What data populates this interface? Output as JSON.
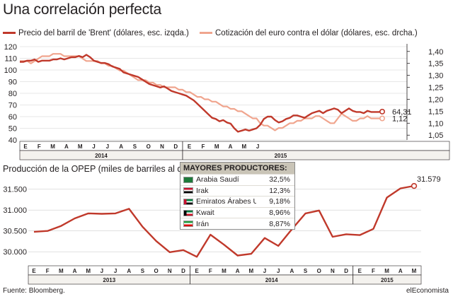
{
  "title": "Una correlación perfecta",
  "legend": {
    "brent": "Precio del barril de 'Brent' (dólares, esc. izqda.)",
    "euro": "Cotización del euro contra el dólar (dólares, esc. drcha.)"
  },
  "colors": {
    "brent": "#c0392b",
    "euro": "#f0a58e",
    "box_header": "#c9c4b7"
  },
  "chart2_title": "Producción de la OPEP (miles de barriles al día)",
  "producers": {
    "header": "MAYORES PRODUCTORES:",
    "rows": [
      {
        "name": "Arabia Saudí",
        "value": "32,5%",
        "flag": "saudi-flag-icon"
      },
      {
        "name": "Irak",
        "value": "12,3%",
        "flag": "iraq-flag-icon"
      },
      {
        "name": "Emiratos Árabes U.",
        "value": "9,18%",
        "flag": "uae-flag-icon"
      },
      {
        "name": "Kwait",
        "value": "8,96%",
        "flag": "kuwait-flag-icon"
      },
      {
        "name": "Irán",
        "value": "8,87%",
        "flag": "iran-flag-icon"
      }
    ]
  },
  "footer": {
    "source": "Fuente: Bloomberg.",
    "brand": "elEconomista"
  },
  "chart_data": [
    {
      "type": "line",
      "x_tick_labels": [
        "E",
        "F",
        "M",
        "A",
        "M",
        "J",
        "J",
        "A",
        "S",
        "O",
        "N",
        "D",
        "E",
        "F",
        "M",
        "A",
        "M",
        "J"
      ],
      "year_labels": [
        "2014",
        "2015"
      ],
      "left_axis": {
        "ticks": [
          "40",
          "50",
          "60",
          "70",
          "80",
          "90",
          "100",
          "110",
          "120"
        ],
        "ylim": [
          40,
          120
        ]
      },
      "right_axis": {
        "ticks": [
          "1,05",
          "1,10",
          "1,15",
          "1,20",
          "1,25",
          "1,30",
          "1,35",
          "1,40"
        ],
        "ylim": [
          1.03,
          1.42
        ]
      },
      "series": [
        {
          "name": "Precio del barril de 'Brent' (dólares, esc. izqda.)",
          "axis": "left",
          "end_label": "64,31",
          "values": [
            107,
            107,
            108,
            108,
            109,
            107,
            108,
            108,
            108,
            109,
            109,
            110,
            109,
            110,
            111,
            111,
            112,
            111,
            113,
            111,
            108,
            107,
            106,
            106,
            105,
            103,
            102,
            101,
            98,
            97,
            96,
            95,
            94,
            92,
            90,
            88,
            87,
            86,
            85,
            86,
            84,
            82,
            81,
            80,
            79,
            78,
            76,
            74,
            71,
            68,
            65,
            62,
            59,
            58,
            56,
            57,
            55,
            54,
            50,
            47,
            48,
            49,
            48,
            49,
            50,
            53,
            58,
            60,
            60,
            57,
            55,
            56,
            58,
            59,
            61,
            61,
            60,
            59,
            61,
            63,
            64,
            65,
            63,
            65,
            66,
            67,
            66,
            63,
            65,
            67,
            65,
            64,
            64,
            63,
            65,
            64,
            64,
            64,
            64.31
          ]
        },
        {
          "name": "Cotización del euro contra el dólar (dólares, esc. drcha.)",
          "axis": "right",
          "end_label": "1,12",
          "values": [
            1.36,
            1.36,
            1.36,
            1.35,
            1.36,
            1.37,
            1.38,
            1.38,
            1.38,
            1.39,
            1.39,
            1.39,
            1.38,
            1.38,
            1.38,
            1.38,
            1.38,
            1.37,
            1.36,
            1.36,
            1.36,
            1.36,
            1.35,
            1.35,
            1.34,
            1.34,
            1.33,
            1.32,
            1.32,
            1.31,
            1.3,
            1.29,
            1.28,
            1.28,
            1.28,
            1.27,
            1.27,
            1.26,
            1.26,
            1.25,
            1.25,
            1.25,
            1.25,
            1.24,
            1.24,
            1.23,
            1.23,
            1.22,
            1.21,
            1.21,
            1.2,
            1.2,
            1.19,
            1.19,
            1.18,
            1.17,
            1.17,
            1.16,
            1.16,
            1.15,
            1.15,
            1.14,
            1.13,
            1.12,
            1.12,
            1.1,
            1.09,
            1.09,
            1.08,
            1.07,
            1.08,
            1.08,
            1.09,
            1.1,
            1.1,
            1.11,
            1.11,
            1.12,
            1.12,
            1.12,
            1.13,
            1.13,
            1.12,
            1.11,
            1.1,
            1.1,
            1.12,
            1.14,
            1.13,
            1.12,
            1.11,
            1.11,
            1.12,
            1.12,
            1.13,
            1.12,
            1.12,
            1.12,
            1.12
          ]
        }
      ],
      "grid": true
    },
    {
      "type": "line",
      "categories": [
        "E",
        "F",
        "M",
        "A",
        "M",
        "J",
        "J",
        "A",
        "S",
        "O",
        "N",
        "D",
        "E",
        "F",
        "M",
        "A",
        "M",
        "J",
        "J",
        "A",
        "S",
        "O",
        "N",
        "D",
        "E",
        "F",
        "M",
        "A",
        "M"
      ],
      "year_labels": [
        "2013",
        "2014",
        "2015"
      ],
      "ylim": [
        29800,
        31800
      ],
      "y_ticks": [
        "30.000",
        "30.500",
        "31.000",
        "31.500"
      ],
      "end_label": "31.579",
      "values": [
        30480,
        30500,
        30620,
        30800,
        30920,
        30910,
        30920,
        31030,
        30600,
        30260,
        29990,
        30040,
        29880,
        30410,
        30170,
        29910,
        29950,
        30330,
        30140,
        30540,
        30920,
        30990,
        30360,
        30420,
        30400,
        30550,
        31300,
        31520,
        31579
      ],
      "grid": true
    }
  ]
}
